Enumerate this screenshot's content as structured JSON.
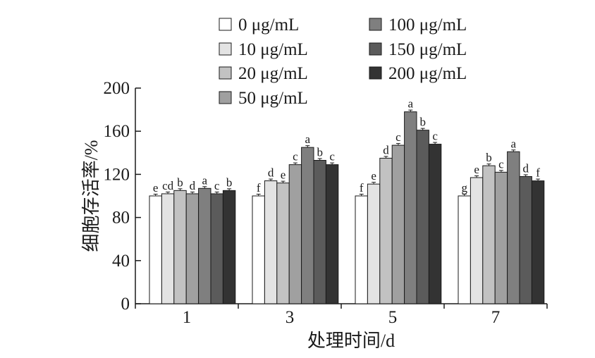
{
  "chart_data": {
    "type": "bar",
    "xlabel": "处理时间/d",
    "ylabel": "细胞存活率/%",
    "ylim": [
      0,
      200
    ],
    "yticks": [
      0,
      40,
      80,
      120,
      160,
      200
    ],
    "categories": [
      "1",
      "3",
      "5",
      "7"
    ],
    "legend_position": "top-center",
    "series": [
      {
        "name": "0 μg/mL",
        "color": "#ffffff",
        "values": [
          100,
          100,
          100,
          100
        ],
        "labels": [
          "e",
          "f",
          "f",
          "g"
        ]
      },
      {
        "name": "10 μg/mL",
        "color": "#e3e3e3",
        "values": [
          102,
          114,
          111,
          117
        ],
        "labels": [
          "cd",
          "d",
          "e",
          "e"
        ]
      },
      {
        "name": "20 μg/mL",
        "color": "#c2c2c2",
        "values": [
          105,
          112,
          135,
          128
        ],
        "labels": [
          "b",
          "e",
          "d",
          "b"
        ]
      },
      {
        "name": "50 μg/mL",
        "color": "#a0a0a0",
        "values": [
          102,
          129,
          147,
          122
        ],
        "labels": [
          "d",
          "c",
          "c",
          "c"
        ]
      },
      {
        "name": "100 μg/mL",
        "color": "#7f7f7f",
        "values": [
          107,
          145,
          178,
          141
        ],
        "labels": [
          "a",
          "a",
          "a",
          "a"
        ]
      },
      {
        "name": "150 μg/mL",
        "color": "#5b5b5b",
        "values": [
          102,
          133,
          161,
          118
        ],
        "labels": [
          "c",
          "b",
          "b",
          "d"
        ]
      },
      {
        "name": "200 μg/mL",
        "color": "#333333",
        "values": [
          105,
          129,
          148,
          114
        ],
        "labels": [
          "b",
          "c",
          "c",
          "f"
        ]
      }
    ]
  }
}
